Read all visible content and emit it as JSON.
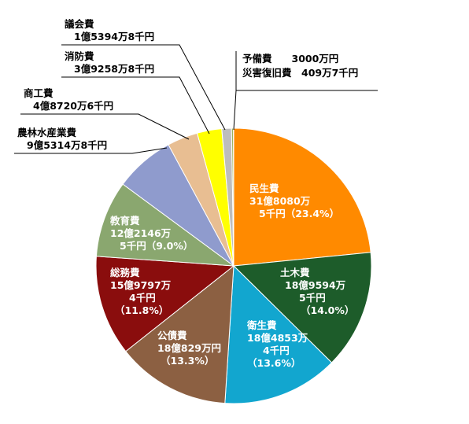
{
  "colors": {
    "minsei": "#FF8A00",
    "doboku": "#1D5C2A",
    "eisei": "#12A6CF",
    "kousai": "#8C6042",
    "soumu": "#8A0D0D",
    "kyouiku": "#8AA76F",
    "nourin": "#8F9BCD",
    "shoukou": "#E8BE92",
    "shoubou": "#FFFF00",
    "gikai": "#BDBDBD",
    "yobi": "#9BB25A",
    "saigai": "#EE1C1C",
    "leader": "#000000"
  },
  "chart_data": {
    "type": "pie",
    "title": "",
    "start": "12 o'clock, clockwise",
    "slices": [
      {
        "key": "minsei",
        "name": "民生費",
        "amount": "31億8080万5千円",
        "value": 31.808,
        "percent": "23.4%",
        "lines": [
          "民生費",
          "31億8080万",
          "5千円（23.4%）"
        ]
      },
      {
        "key": "doboku",
        "name": "土木費",
        "amount": "18億9594万5千円",
        "value": 18.959,
        "percent": "14.0%",
        "lines": [
          "土木費",
          "18億9594万",
          "5千円",
          "（14.0%）"
        ]
      },
      {
        "key": "eisei",
        "name": "衛生費",
        "amount": "18億4853万4千円",
        "value": 18.485,
        "percent": "13.6%",
        "lines": [
          "衛生費",
          "18億4853万",
          "4千円",
          "（13.6%）"
        ]
      },
      {
        "key": "kousai",
        "name": "公債費",
        "amount": "18億829万円",
        "value": 18.083,
        "percent": "13.3%",
        "lines": [
          "公債費",
          "18億829万円",
          "（13.3%）"
        ]
      },
      {
        "key": "soumu",
        "name": "総務費",
        "amount": "15億9797万4千円",
        "value": 15.98,
        "percent": "11.8%",
        "lines": [
          "総務費",
          "15億9797万",
          "4千円",
          "（11.8%）"
        ]
      },
      {
        "key": "kyouiku",
        "name": "教育費",
        "amount": "12億2146万5千円",
        "value": 12.215,
        "percent": "9.0%",
        "lines": [
          "教育費",
          "12億2146万",
          "5千円（9.0%）"
        ]
      },
      {
        "key": "nourin",
        "name": "農林水産業費",
        "amount": "9億5314万8千円",
        "value": 9.531,
        "percent": "",
        "lines": [
          "農林水産業費",
          "9億5314万8千円"
        ]
      },
      {
        "key": "shoukou",
        "name": "商工費",
        "amount": "4億8720万6千円",
        "value": 4.872,
        "percent": "",
        "lines": [
          "商工費",
          "4億8720万6千円"
        ]
      },
      {
        "key": "shoubou",
        "name": "消防費",
        "amount": "3億9258万8千円",
        "value": 3.926,
        "percent": "",
        "lines": [
          "消防費",
          "3億9258万8千円"
        ]
      },
      {
        "key": "gikai",
        "name": "議会費",
        "amount": "1億5394万8千円",
        "value": 1.539,
        "percent": "",
        "lines": [
          "議会費",
          "1億5394万8千円"
        ]
      },
      {
        "key": "yobi",
        "name": "予備費",
        "amount": "3000万円",
        "value": 0.3,
        "percent": "",
        "lines": [
          "予備費　　3000万円"
        ]
      },
      {
        "key": "saigai",
        "name": "災害復旧費",
        "amount": "409万7千円",
        "value": 0.041,
        "percent": "",
        "lines": [
          "災害復旧費　409万7千円"
        ]
      }
    ]
  }
}
